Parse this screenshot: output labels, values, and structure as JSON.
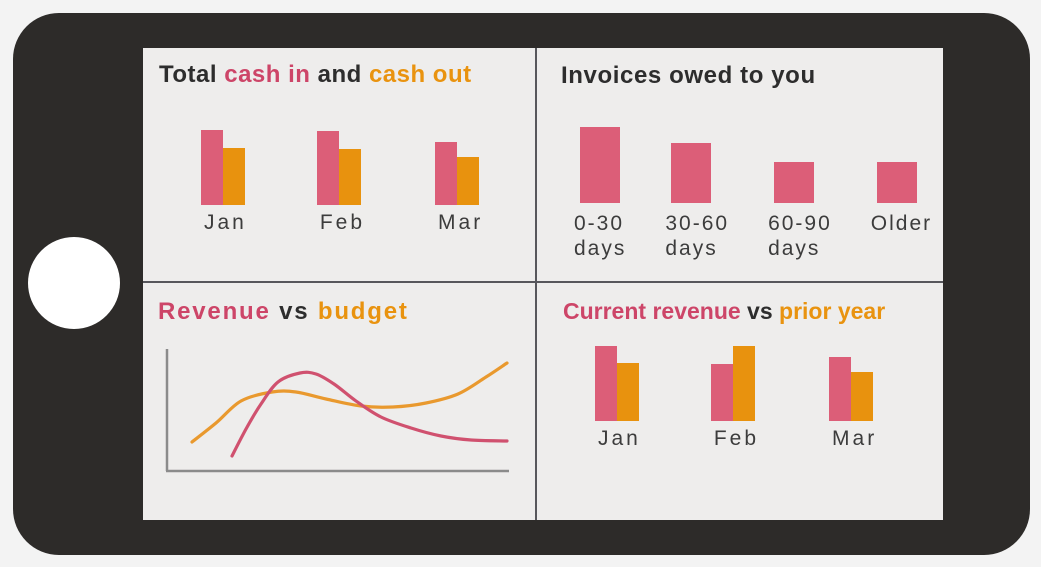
{
  "colors": {
    "page_bg": "#f3f3f3",
    "frame": "#2d2b29",
    "home_button": "#ffffff",
    "screen_bg": "#eeedec",
    "divider": "#57575c",
    "pink_bar": "#dc5e78",
    "orange_bar": "#e8920e",
    "pink_text": "#cd4568",
    "orange_text": "#e9930f",
    "dark_text": "#2d2d2d",
    "label_text": "#3c3c3c",
    "axis": "#8b8b8b",
    "line_pink": "#d0516f",
    "line_orange": "#e9992e"
  },
  "panels": {
    "cash_flow": {
      "title_segments": [
        {
          "text": "Total ",
          "color": "dark"
        },
        {
          "text": "cash in",
          "color": "pink"
        },
        {
          "text": " and ",
          "color": "dark"
        },
        {
          "text": "cash out",
          "color": "orange"
        }
      ]
    },
    "invoices": {
      "title_segments": [
        {
          "text": "Invoices owed to you",
          "color": "dark"
        }
      ]
    },
    "revenue_budget": {
      "title_segments": [
        {
          "text": "Revenue",
          "color": "pink"
        },
        {
          "text": " vs ",
          "color": "dark"
        },
        {
          "text": "budget",
          "color": "orange"
        }
      ]
    },
    "current_prior": {
      "title_segments": [
        {
          "text": "Current revenue",
          "color": "pink"
        },
        {
          "text": " vs ",
          "color": "dark"
        },
        {
          "text": "prior year",
          "color": "orange"
        }
      ]
    }
  },
  "chart_data": [
    {
      "id": "cash_flow",
      "type": "bar",
      "title": "Total cash in and cash out",
      "categories": [
        "Jan",
        "Feb",
        "Mar"
      ],
      "series": [
        {
          "name": "cash in",
          "color": "#dc5e78",
          "values": [
            75,
            74,
            63
          ]
        },
        {
          "name": "cash out",
          "color": "#e8920e",
          "values": [
            57,
            56,
            48
          ]
        }
      ],
      "ylim": [
        0,
        80
      ],
      "units": "relative bar height (no value axis shown)"
    },
    {
      "id": "invoices",
      "type": "bar",
      "title": "Invoices owed to you",
      "categories": [
        [
          "0-30",
          "days"
        ],
        [
          "30-60",
          "days"
        ],
        [
          "60-90",
          "days"
        ],
        [
          "Older"
        ]
      ],
      "series": [
        {
          "name": "invoices owed",
          "color": "#dc5e78",
          "values": [
            76,
            60,
            41,
            41
          ]
        }
      ],
      "ylim": [
        0,
        80
      ],
      "units": "relative bar height (no value axis shown)"
    },
    {
      "id": "revenue_budget",
      "type": "line",
      "title": "Revenue vs budget",
      "axes": {
        "note": "no tick labels shown; points are pixel coords in a 347x127 plot, y increases downward",
        "xlim": [
          0,
          347
        ],
        "ylim": [
          0,
          127
        ]
      },
      "series": [
        {
          "name": "budget",
          "color": "#e9992e",
          "points": [
            [
              28,
              95
            ],
            [
              52,
              76
            ],
            [
              77,
              54
            ],
            [
              108,
              45
            ],
            [
              132,
              45
            ],
            [
              162,
              52
            ],
            [
              197,
              59
            ],
            [
              229,
              60
            ],
            [
              262,
              56
            ],
            [
              294,
              47
            ],
            [
              322,
              30
            ],
            [
              343,
              16
            ]
          ]
        },
        {
          "name": "Revenue",
          "color": "#d0516f",
          "points": [
            [
              68,
              109
            ],
            [
              82,
              82
            ],
            [
              97,
              57
            ],
            [
              114,
              35
            ],
            [
              136,
              26
            ],
            [
              152,
              27
            ],
            [
              170,
              37
            ],
            [
              192,
              54
            ],
            [
              217,
              70
            ],
            [
              247,
              81
            ],
            [
              277,
              89
            ],
            [
              307,
              93
            ],
            [
              343,
              94
            ]
          ]
        }
      ]
    },
    {
      "id": "current_prior",
      "type": "bar",
      "title": "Current revenue vs prior year",
      "categories": [
        "Jan",
        "Feb",
        "Mar"
      ],
      "series": [
        {
          "name": "Current revenue",
          "color": "#dc5e78",
          "values": [
            75,
            57,
            64
          ]
        },
        {
          "name": "prior year",
          "color": "#e8920e",
          "values": [
            58,
            75,
            49
          ]
        }
      ],
      "ylim": [
        0,
        80
      ],
      "units": "relative bar height (no value axis shown)"
    }
  ]
}
